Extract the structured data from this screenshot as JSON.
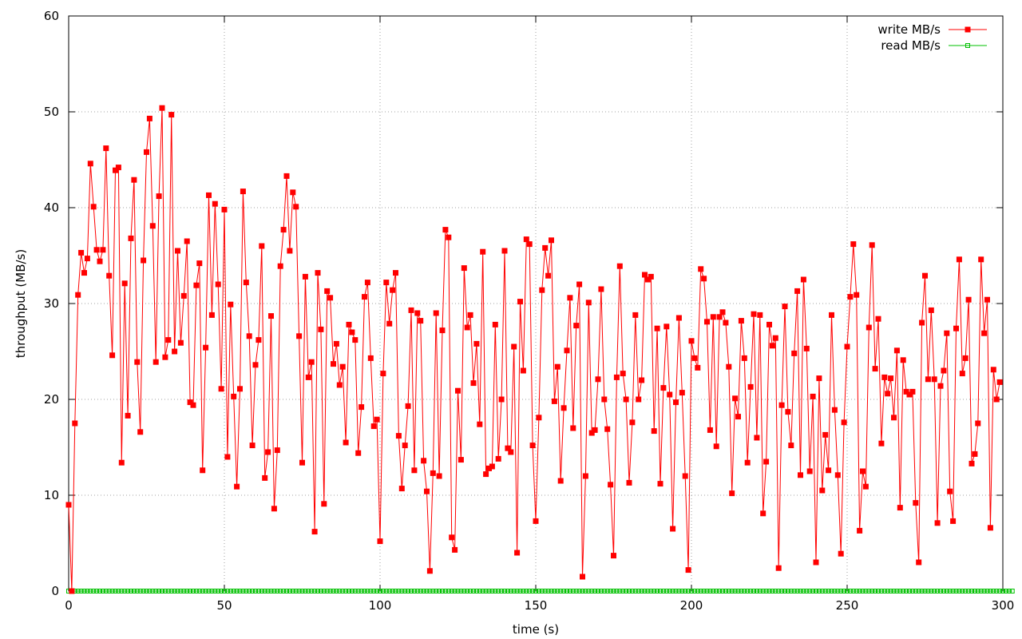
{
  "chart_data": {
    "type": "line",
    "xlabel": "time (s)",
    "ylabel": "throughput (MB/s)",
    "xlim": [
      0,
      300
    ],
    "ylim": [
      0,
      60
    ],
    "xticks": [
      0,
      50,
      100,
      150,
      200,
      250,
      300
    ],
    "yticks": [
      0,
      10,
      20,
      30,
      40,
      50,
      60
    ],
    "grid": true,
    "legend_position": "top-right",
    "series": [
      {
        "name": "write MB/s",
        "color": "#ff0000",
        "marker": "filled-square",
        "values": [
          9.0,
          0.0,
          17.5,
          30.9,
          35.3,
          33.2,
          34.7,
          44.6,
          40.1,
          35.6,
          34.4,
          35.6,
          46.2,
          32.9,
          24.6,
          43.9,
          44.2,
          13.4,
          32.1,
          18.3,
          36.8,
          42.9,
          23.9,
          16.6,
          34.5,
          45.8,
          49.3,
          38.1,
          23.9,
          41.2,
          50.4,
          24.4,
          26.2,
          49.7,
          25.0,
          35.5,
          25.9,
          30.8,
          36.5,
          19.7,
          19.4,
          31.9,
          34.2,
          12.6,
          25.4,
          41.3,
          28.8,
          40.4,
          32.0,
          21.1,
          39.8,
          14.0,
          29.9,
          20.3,
          10.9,
          21.1,
          41.7,
          32.2,
          26.6,
          15.2,
          23.6,
          26.2,
          36.0,
          11.8,
          14.5,
          28.7,
          8.6,
          14.7,
          33.9,
          37.7,
          43.3,
          35.5,
          41.6,
          40.1,
          26.6,
          13.4,
          32.8,
          22.3,
          23.9,
          6.2,
          33.2,
          27.3,
          9.1,
          31.3,
          30.6,
          23.7,
          25.8,
          21.5,
          23.4,
          15.5,
          27.8,
          27.0,
          26.2,
          14.4,
          19.2,
          30.7,
          32.2,
          24.3,
          17.2,
          17.9,
          5.2,
          22.7,
          32.2,
          27.9,
          31.4,
          33.2,
          16.2,
          10.7,
          15.2,
          19.3,
          29.3,
          12.6,
          29.0,
          28.2,
          13.6,
          10.4,
          2.1,
          12.3,
          29.0,
          12.0,
          27.2,
          37.7,
          36.9,
          5.6,
          4.3,
          20.9,
          13.7,
          33.7,
          27.5,
          28.8,
          21.7,
          25.8,
          17.4,
          35.4,
          12.2,
          12.8,
          13.0,
          27.8,
          13.8,
          20.0,
          35.5,
          14.9,
          14.5,
          25.5,
          4.0,
          30.2,
          23.0,
          36.7,
          36.2,
          15.2,
          7.3,
          18.1,
          31.4,
          35.8,
          32.9,
          36.6,
          19.8,
          23.4,
          11.5,
          19.1,
          25.1,
          30.6,
          17.0,
          27.7,
          32.0,
          1.5,
          12.0,
          30.1,
          16.5,
          16.8,
          22.1,
          31.5,
          20.0,
          16.9,
          11.1,
          3.7,
          22.3,
          33.9,
          22.7,
          20.0,
          11.3,
          17.6,
          28.8,
          20.0,
          22.0,
          33.0,
          32.5,
          32.8,
          16.7,
          27.4,
          11.2,
          21.2,
          27.6,
          20.5,
          6.5,
          19.7,
          28.5,
          20.7,
          12.0,
          2.2,
          26.1,
          24.3,
          23.3,
          33.6,
          32.6,
          28.1,
          16.8,
          28.6,
          15.1,
          28.6,
          29.1,
          28.0,
          23.4,
          10.2,
          20.1,
          18.2,
          28.2,
          24.3,
          13.4,
          21.3,
          28.9,
          16.0,
          28.8,
          8.1,
          13.5,
          27.8,
          25.6,
          26.4,
          2.4,
          19.4,
          29.7,
          18.7,
          15.2,
          24.8,
          31.3,
          12.1,
          32.5,
          25.3,
          12.5,
          20.3,
          3.0,
          22.2,
          10.5,
          16.3,
          12.6,
          28.8,
          18.9,
          12.1,
          3.9,
          17.6,
          25.5,
          30.7,
          36.2,
          30.9,
          6.3,
          12.5,
          10.9,
          27.5,
          36.1,
          23.2,
          28.4,
          15.4,
          22.3,
          20.6,
          22.2,
          18.1,
          25.1,
          8.7,
          24.1,
          20.8,
          20.5,
          20.8,
          9.2,
          3.0,
          28.0,
          32.9,
          22.1,
          29.3,
          22.1,
          7.1,
          21.4,
          23.0,
          26.9,
          10.4,
          7.3,
          27.4,
          34.6,
          22.7,
          24.3,
          30.4,
          13.3,
          14.3,
          17.5,
          34.6,
          26.9,
          30.4,
          6.6,
          23.1,
          20.0,
          21.8
        ]
      },
      {
        "name": "read MB/s",
        "color": "#00c000",
        "marker": "open-square",
        "values": [
          0,
          0,
          0,
          0,
          0,
          0,
          0,
          0,
          0,
          0,
          0,
          0,
          0,
          0,
          0,
          0,
          0,
          0,
          0,
          0,
          0,
          0,
          0,
          0,
          0,
          0,
          0,
          0,
          0,
          0,
          0,
          0,
          0,
          0,
          0,
          0,
          0,
          0,
          0,
          0,
          0,
          0,
          0,
          0,
          0,
          0,
          0,
          0,
          0,
          0,
          0,
          0,
          0,
          0,
          0,
          0,
          0,
          0,
          0,
          0,
          0,
          0,
          0,
          0,
          0,
          0,
          0,
          0,
          0,
          0,
          0,
          0,
          0,
          0,
          0,
          0,
          0,
          0,
          0,
          0,
          0,
          0,
          0,
          0,
          0,
          0,
          0,
          0,
          0,
          0,
          0,
          0,
          0,
          0,
          0,
          0,
          0,
          0,
          0,
          0,
          0,
          0,
          0,
          0,
          0,
          0,
          0,
          0,
          0,
          0,
          0,
          0,
          0,
          0,
          0,
          0,
          0,
          0,
          0,
          0,
          0,
          0,
          0,
          0,
          0,
          0,
          0,
          0,
          0,
          0,
          0,
          0,
          0,
          0,
          0,
          0,
          0,
          0,
          0,
          0,
          0,
          0,
          0,
          0,
          0,
          0,
          0,
          0,
          0,
          0,
          0,
          0,
          0,
          0,
          0,
          0,
          0,
          0,
          0,
          0,
          0,
          0,
          0,
          0,
          0,
          0,
          0,
          0,
          0,
          0,
          0,
          0,
          0,
          0,
          0,
          0,
          0,
          0,
          0,
          0,
          0,
          0,
          0,
          0,
          0,
          0,
          0,
          0,
          0,
          0,
          0,
          0,
          0,
          0,
          0,
          0,
          0,
          0,
          0,
          0,
          0,
          0,
          0,
          0,
          0,
          0,
          0,
          0,
          0,
          0,
          0,
          0,
          0,
          0,
          0,
          0,
          0,
          0,
          0,
          0,
          0,
          0,
          0,
          0,
          0,
          0,
          0,
          0,
          0,
          0,
          0,
          0,
          0,
          0,
          0,
          0,
          0,
          0,
          0,
          0,
          0,
          0,
          0,
          0,
          0,
          0,
          0,
          0,
          0,
          0,
          0,
          0,
          0,
          0,
          0,
          0,
          0,
          0,
          0,
          0,
          0,
          0,
          0,
          0,
          0,
          0,
          0,
          0,
          0,
          0,
          0,
          0,
          0,
          0,
          0,
          0,
          0,
          0,
          0,
          0,
          0,
          0,
          0,
          0,
          0,
          0,
          0,
          0,
          0,
          0,
          0,
          0,
          0,
          0,
          0,
          0,
          0,
          0,
          0,
          0,
          0,
          0,
          0,
          0
        ]
      }
    ]
  }
}
